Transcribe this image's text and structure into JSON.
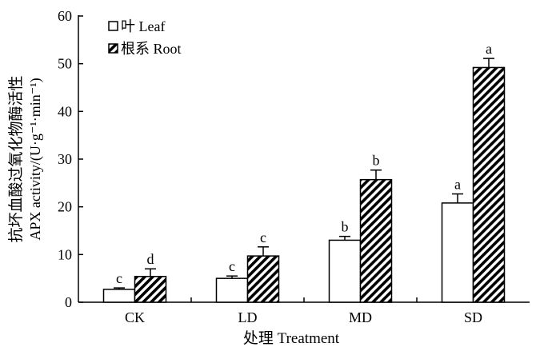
{
  "chart_data": {
    "type": "bar",
    "title": "",
    "categories": [
      "CK",
      "LD",
      "MD",
      "SD"
    ],
    "series": [
      {
        "name": "叶 Leaf",
        "pattern": "white",
        "values": [
          2.7,
          5.0,
          13.0,
          20.8
        ],
        "errors": [
          0.3,
          0.5,
          0.8,
          1.9
        ],
        "letters": [
          "c",
          "c",
          "b",
          "a"
        ]
      },
      {
        "name": "根系 Root",
        "pattern": "diagonal-hatch",
        "values": [
          5.4,
          9.7,
          25.7,
          49.2
        ],
        "errors": [
          1.6,
          1.9,
          2.0,
          1.9
        ],
        "letters": [
          "d",
          "c",
          "b",
          "a"
        ]
      }
    ],
    "xlabel": "处理 Treatment",
    "ylabel_line1": "抗坏血酸过氧化物酶活性",
    "ylabel_line2": "APX activity/(U·g⁻¹·min⁻¹)",
    "ylim": [
      0,
      60
    ],
    "yticks": [
      0,
      10,
      20,
      30,
      40,
      50,
      60
    ],
    "legend_position": "top-left",
    "grid": false
  },
  "colors": {
    "ink": "#000000",
    "bar_fill": "#ffffff"
  }
}
